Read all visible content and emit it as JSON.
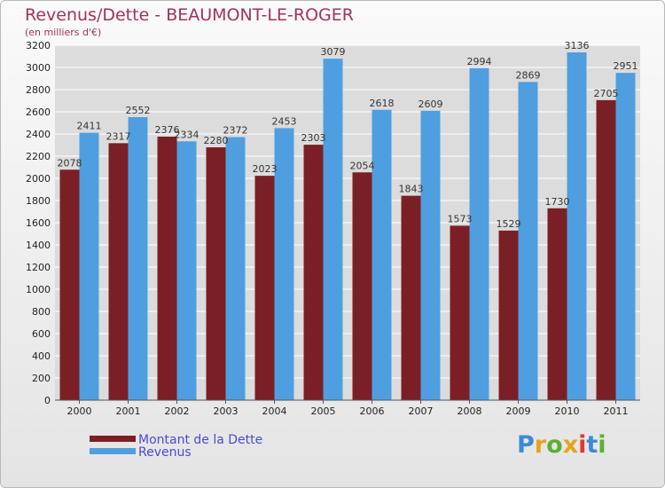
{
  "colors": {
    "debt": "#7b1f26",
    "revenue": "#4f9fe0",
    "title": "#a2325d",
    "legend_text": "#4a4ad0",
    "grid": "#ffffff",
    "axis_text": "#222222"
  },
  "legend": {
    "debt_label": "Montant de la Dette",
    "revenue_label": "Revenus"
  },
  "brand": {
    "letters": [
      "P",
      "r",
      "o",
      "x",
      "i",
      "t",
      "i"
    ],
    "letter_colors": [
      "#3c8ad6",
      "#e8a21a",
      "#5cb030",
      "#e8a21a",
      "#e23a2a",
      "#3c8ad6",
      "#5cb030"
    ]
  },
  "chart_data": {
    "type": "bar",
    "title": "Revenus/Dette - BEAUMONT-LE-ROGER",
    "subtitle": "(en milliers d'€)",
    "xlabel": "",
    "ylabel": "",
    "categories": [
      "2000",
      "2001",
      "2002",
      "2003",
      "2004",
      "2005",
      "2006",
      "2007",
      "2008",
      "2009",
      "2010",
      "2011"
    ],
    "series": [
      {
        "name": "Montant de la Dette",
        "values": [
          2078,
          2317,
          2376,
          2280,
          2023,
          2303,
          2054,
          1843,
          1573,
          1529,
          1730,
          2705
        ]
      },
      {
        "name": "Revenus",
        "values": [
          2411,
          2552,
          2334,
          2372,
          2453,
          3079,
          2618,
          2609,
          2994,
          2869,
          3136,
          2951
        ]
      }
    ],
    "ylim": [
      0,
      3200
    ],
    "yticks": [
      0,
      200,
      400,
      600,
      800,
      1000,
      1200,
      1400,
      1600,
      1800,
      2000,
      2200,
      2400,
      2600,
      2800,
      3000,
      3200
    ],
    "grid": true,
    "legend_position": "bottom-left"
  }
}
